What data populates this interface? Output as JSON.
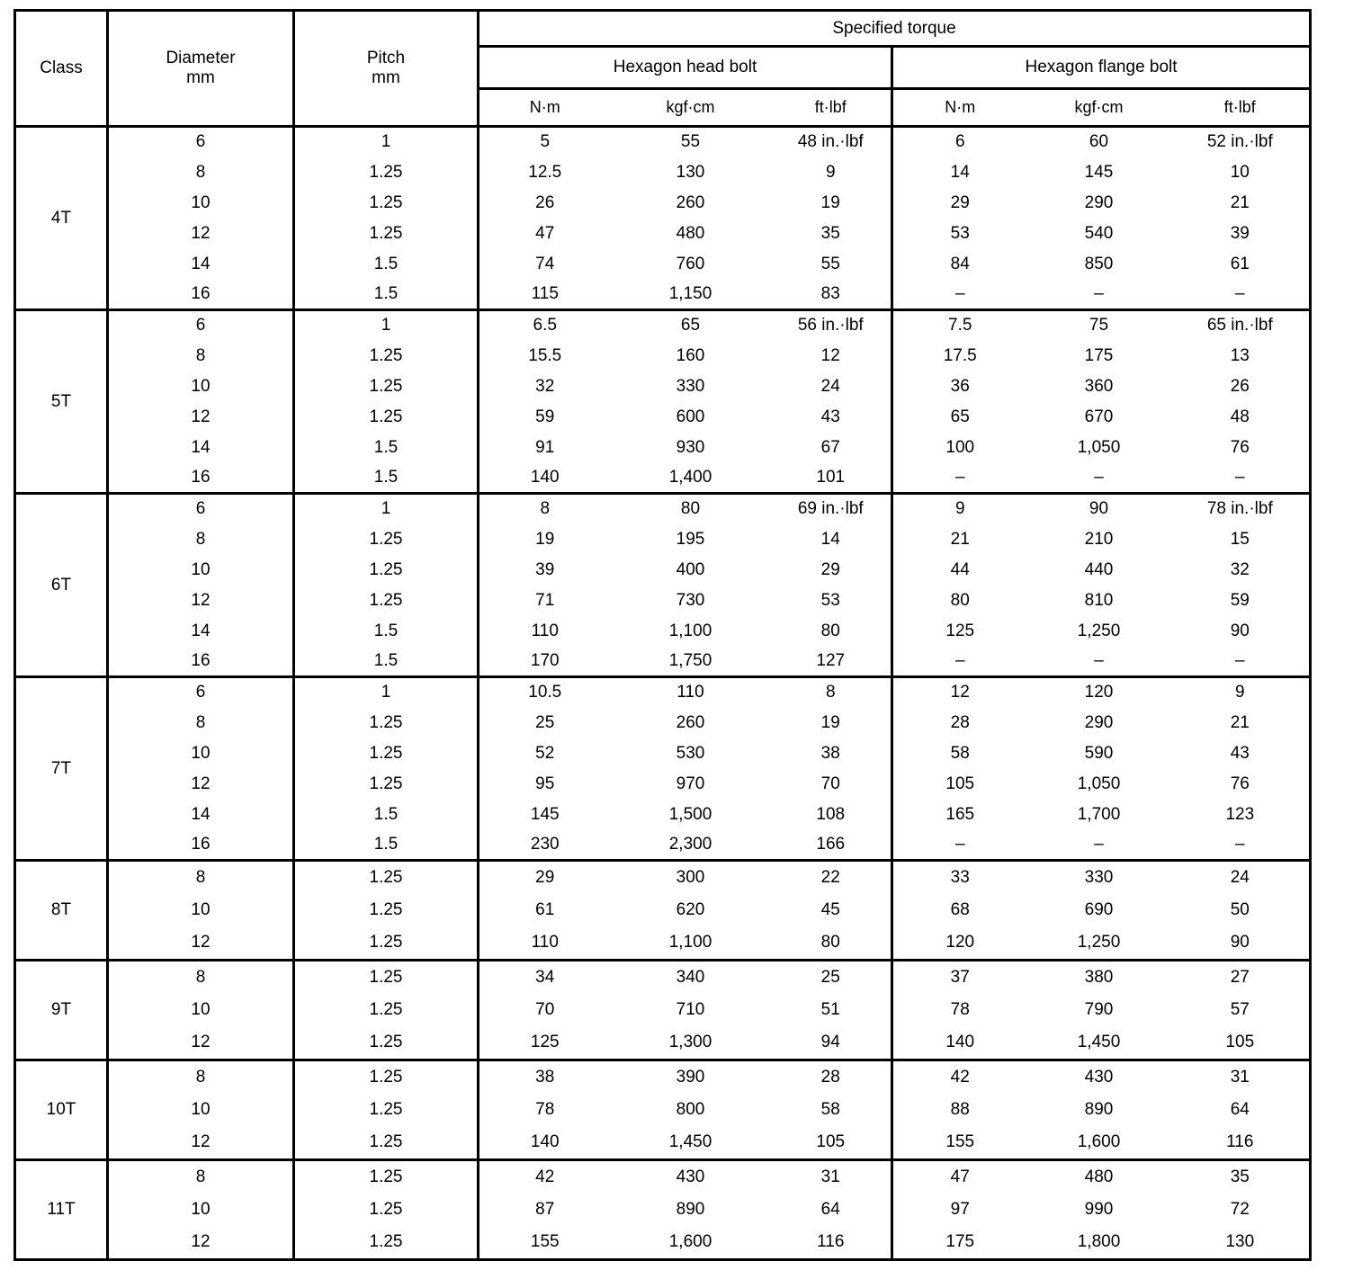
{
  "table": {
    "headers": {
      "class": "Class",
      "diameter": {
        "label": "Diameter",
        "unit": "mm"
      },
      "pitch": {
        "label": "Pitch",
        "unit": "mm"
      },
      "specified_torque": "Specified torque",
      "hexagon_head_bolt": "Hexagon head bolt",
      "hexagon_flange_bolt": "Hexagon flange bolt",
      "units": [
        "N·m",
        "kgf·cm",
        "ft·lbf",
        "N·m",
        "kgf·cm",
        "ft·lbf"
      ]
    },
    "groups": [
      {
        "class": "4T",
        "rows": [
          [
            "6",
            "1",
            "5",
            "55",
            "48 in.·lbf",
            "6",
            "60",
            "52 in.·lbf"
          ],
          [
            "8",
            "1.25",
            "12.5",
            "130",
            "9",
            "14",
            "145",
            "10"
          ],
          [
            "10",
            "1.25",
            "26",
            "260",
            "19",
            "29",
            "290",
            "21"
          ],
          [
            "12",
            "1.25",
            "47",
            "480",
            "35",
            "53",
            "540",
            "39"
          ],
          [
            "14",
            "1.5",
            "74",
            "760",
            "55",
            "84",
            "850",
            "61"
          ],
          [
            "16",
            "1.5",
            "115",
            "1,150",
            "83",
            "–",
            "–",
            "–"
          ]
        ]
      },
      {
        "class": "5T",
        "rows": [
          [
            "6",
            "1",
            "6.5",
            "65",
            "56 in.·lbf",
            "7.5",
            "75",
            "65 in.·lbf"
          ],
          [
            "8",
            "1.25",
            "15.5",
            "160",
            "12",
            "17.5",
            "175",
            "13"
          ],
          [
            "10",
            "1.25",
            "32",
            "330",
            "24",
            "36",
            "360",
            "26"
          ],
          [
            "12",
            "1.25",
            "59",
            "600",
            "43",
            "65",
            "670",
            "48"
          ],
          [
            "14",
            "1.5",
            "91",
            "930",
            "67",
            "100",
            "1,050",
            "76"
          ],
          [
            "16",
            "1.5",
            "140",
            "1,400",
            "101",
            "–",
            "–",
            "–"
          ]
        ]
      },
      {
        "class": "6T",
        "rows": [
          [
            "6",
            "1",
            "8",
            "80",
            "69 in.·lbf",
            "9",
            "90",
            "78 in.·lbf"
          ],
          [
            "8",
            "1.25",
            "19",
            "195",
            "14",
            "21",
            "210",
            "15"
          ],
          [
            "10",
            "1.25",
            "39",
            "400",
            "29",
            "44",
            "440",
            "32"
          ],
          [
            "12",
            "1.25",
            "71",
            "730",
            "53",
            "80",
            "810",
            "59"
          ],
          [
            "14",
            "1.5",
            "110",
            "1,100",
            "80",
            "125",
            "1,250",
            "90"
          ],
          [
            "16",
            "1.5",
            "170",
            "1,750",
            "127",
            "–",
            "–",
            "–"
          ]
        ]
      },
      {
        "class": "7T",
        "rows": [
          [
            "6",
            "1",
            "10.5",
            "110",
            "8",
            "12",
            "120",
            "9"
          ],
          [
            "8",
            "1.25",
            "25",
            "260",
            "19",
            "28",
            "290",
            "21"
          ],
          [
            "10",
            "1.25",
            "52",
            "530",
            "38",
            "58",
            "590",
            "43"
          ],
          [
            "12",
            "1.25",
            "95",
            "970",
            "70",
            "105",
            "1,050",
            "76"
          ],
          [
            "14",
            "1.5",
            "145",
            "1,500",
            "108",
            "165",
            "1,700",
            "123"
          ],
          [
            "16",
            "1.5",
            "230",
            "2,300",
            "166",
            "–",
            "–",
            "–"
          ]
        ]
      },
      {
        "class": "8T",
        "rows": [
          [
            "8",
            "1.25",
            "29",
            "300",
            "22",
            "33",
            "330",
            "24"
          ],
          [
            "10",
            "1.25",
            "61",
            "620",
            "45",
            "68",
            "690",
            "50"
          ],
          [
            "12",
            "1.25",
            "110",
            "1,100",
            "80",
            "120",
            "1,250",
            "90"
          ]
        ]
      },
      {
        "class": "9T",
        "rows": [
          [
            "8",
            "1.25",
            "34",
            "340",
            "25",
            "37",
            "380",
            "27"
          ],
          [
            "10",
            "1.25",
            "70",
            "710",
            "51",
            "78",
            "790",
            "57"
          ],
          [
            "12",
            "1.25",
            "125",
            "1,300",
            "94",
            "140",
            "1,450",
            "105"
          ]
        ]
      },
      {
        "class": "10T",
        "rows": [
          [
            "8",
            "1.25",
            "38",
            "390",
            "28",
            "42",
            "430",
            "31"
          ],
          [
            "10",
            "1.25",
            "78",
            "800",
            "58",
            "88",
            "890",
            "64"
          ],
          [
            "12",
            "1.25",
            "140",
            "1,450",
            "105",
            "155",
            "1,600",
            "116"
          ]
        ]
      },
      {
        "class": "11T",
        "rows": [
          [
            "8",
            "1.25",
            "42",
            "430",
            "31",
            "47",
            "480",
            "35"
          ],
          [
            "10",
            "1.25",
            "87",
            "890",
            "64",
            "97",
            "990",
            "72"
          ],
          [
            "12",
            "1.25",
            "155",
            "1,600",
            "116",
            "175",
            "1,800",
            "130"
          ]
        ]
      }
    ]
  }
}
